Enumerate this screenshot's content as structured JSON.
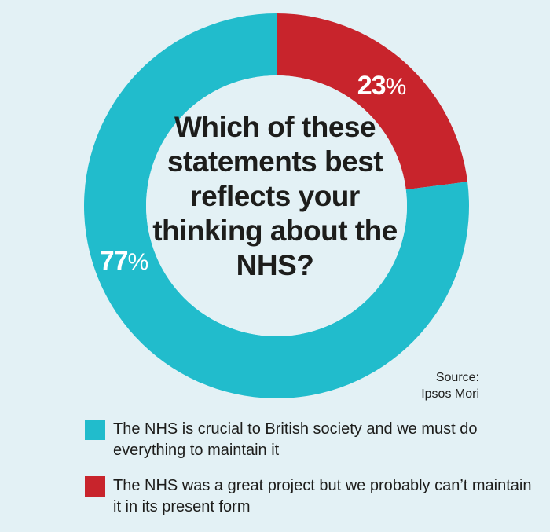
{
  "chart_data": {
    "type": "pie",
    "title": "Which of these statements best reflects your thinking about the NHS?",
    "source_heading": "Source:",
    "source_name": "Ipsos Mori",
    "slices": [
      {
        "label": "The NHS is crucial to British society and we must do everything to maintain it",
        "value": 77,
        "display_value": "77",
        "color": "#21bccc"
      },
      {
        "label": "The NHS was a great project but we probably can’t maintain it in its present form",
        "value": 23,
        "display_value": "23",
        "color": "#c8242c"
      }
    ],
    "percent_sign": "%",
    "donut": true
  }
}
